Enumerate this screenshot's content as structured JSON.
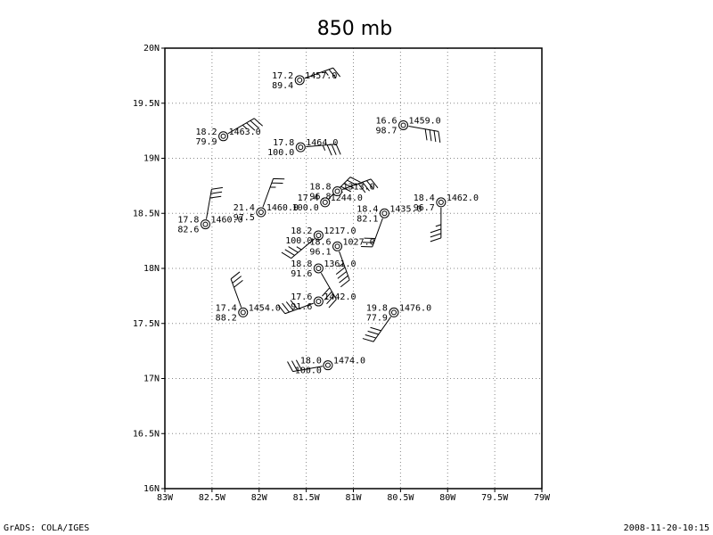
{
  "map": {
    "title": "850 mb",
    "xlim": [
      -83,
      -79
    ],
    "ylim": [
      16,
      20
    ],
    "xticks": [
      {
        "value": -83,
        "label": "83W"
      },
      {
        "value": -82.5,
        "label": "82.5W"
      },
      {
        "value": -82,
        "label": "82W"
      },
      {
        "value": -81.5,
        "label": "81.5W"
      },
      {
        "value": -81,
        "label": "81W"
      },
      {
        "value": -80.5,
        "label": "80.5W"
      },
      {
        "value": -80,
        "label": "80W"
      },
      {
        "value": -79.5,
        "label": "79.5W"
      },
      {
        "value": -79,
        "label": "79W"
      }
    ],
    "yticks": [
      {
        "value": 16,
        "label": "16N"
      },
      {
        "value": 16.5,
        "label": "16.5N"
      },
      {
        "value": 17,
        "label": "17N"
      },
      {
        "value": 17.5,
        "label": "17.5N"
      },
      {
        "value": 18,
        "label": "18N"
      },
      {
        "value": 18.5,
        "label": "18.5N"
      },
      {
        "value": 19,
        "label": "19N"
      },
      {
        "value": 19.5,
        "label": "19.5N"
      },
      {
        "value": 20,
        "label": "20N"
      }
    ],
    "grid": true,
    "stations": [
      {
        "lon": -81.57,
        "lat": 19.71,
        "temp": "17.2",
        "rh": "89.4",
        "height": "1457.0",
        "wind_dir": 70,
        "wind_speed": 25
      },
      {
        "lon": -82.38,
        "lat": 19.2,
        "temp": "18.2",
        "rh": "79.9",
        "height": "1463.0",
        "wind_dir": 60,
        "wind_speed": 35
      },
      {
        "lon": -80.47,
        "lat": 19.3,
        "temp": "16.6",
        "rh": "98.7",
        "height": "1459.0",
        "wind_dir": 100,
        "wind_speed": 40
      },
      {
        "lon": -81.56,
        "lat": 19.1,
        "temp": "17.8",
        "rh": "100.0",
        "height": "1464.0",
        "wind_dir": 85,
        "wind_speed": 35
      },
      {
        "lon": -82.57,
        "lat": 18.4,
        "temp": "17.8",
        "rh": "82.6",
        "height": "1460.0",
        "wind_dir": 10,
        "wind_speed": 30
      },
      {
        "lon": -81.98,
        "lat": 18.51,
        "temp": "21.4",
        "rh": "97.5",
        "height": "1460.0",
        "wind_dir": 20,
        "wind_speed": 25
      },
      {
        "lon": -80.67,
        "lat": 18.5,
        "temp": "18.4",
        "rh": "82.1",
        "height": "1435.0",
        "wind_dir": 200,
        "wind_speed": 30
      },
      {
        "lon": -80.07,
        "lat": 18.6,
        "temp": "18.4",
        "rh": "96.7",
        "height": "1462.0",
        "wind_dir": 180,
        "wind_speed": 35
      },
      {
        "lon": -81.3,
        "lat": 18.6,
        "temp": "17.4",
        "rh": "100.0",
        "height": "1244.0",
        "wind_dir": 45,
        "wind_speed": 45
      },
      {
        "lon": -81.17,
        "lat": 18.7,
        "temp": "18.8",
        "rh": "96.8",
        "height": "1313.0",
        "wind_dir": 70,
        "wind_speed": 40
      },
      {
        "lon": -81.37,
        "lat": 18.3,
        "temp": "18.2",
        "rh": "100.0",
        "height": "1217.0",
        "wind_dir": 230,
        "wind_speed": 35
      },
      {
        "lon": -81.17,
        "lat": 18.2,
        "temp": "18.6",
        "rh": "96.1",
        "height": "1027.0",
        "wind_dir": 160,
        "wind_speed": 45
      },
      {
        "lon": -81.37,
        "lat": 18.0,
        "temp": "18.8",
        "rh": "91.6",
        "height": "1361.0",
        "wind_dir": 150,
        "wind_speed": 40
      },
      {
        "lon": -82.17,
        "lat": 17.6,
        "temp": "17.4",
        "rh": "88.2",
        "height": "1454.0",
        "wind_dir": 340,
        "wind_speed": 30
      },
      {
        "lon": -81.37,
        "lat": 17.7,
        "temp": "17.6",
        "rh": "91.6",
        "height": "1442.0",
        "wind_dir": 250,
        "wind_speed": 40
      },
      {
        "lon": -80.57,
        "lat": 17.6,
        "temp": "19.8",
        "rh": "77.9",
        "height": "1476.0",
        "wind_dir": 215,
        "wind_speed": 40
      },
      {
        "lon": -81.27,
        "lat": 17.12,
        "temp": "18.0",
        "rh": "100.0",
        "height": "1474.0",
        "wind_dir": 260,
        "wind_speed": 30
      }
    ]
  },
  "footer": {
    "left": "GrADS: COLA/IGES",
    "right": "2008-11-20-10:15"
  }
}
